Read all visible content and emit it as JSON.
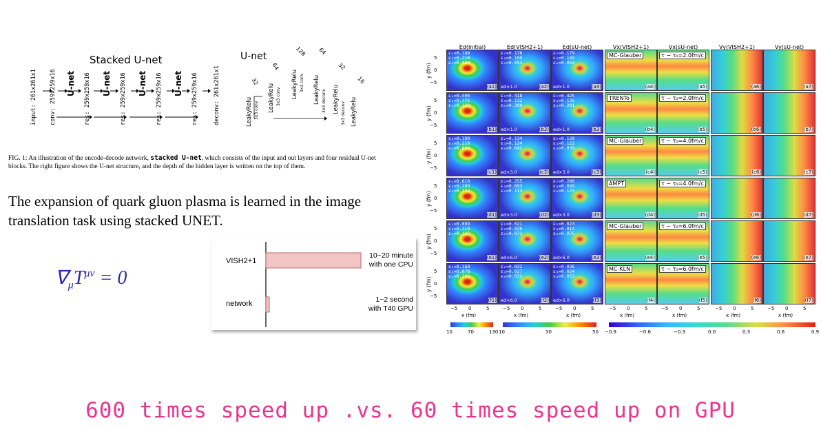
{
  "left": {
    "stacked_title": "Stacked U-net",
    "unet_title": "U-net",
    "stack_labels": [
      "input: 261x261x1",
      "conv: 259x259x16",
      "res: 259x259x16",
      "res: 259x259x16",
      "res: 259x259x16",
      "res: 259x259x16",
      "deconv: 261x261x1"
    ],
    "unet_block": "U-net",
    "unet_depths": [
      "32",
      "64",
      "128",
      "64",
      "32",
      "16"
    ],
    "unet_layers": [
      "LeakyRelu",
      "LeakyRelu",
      "LeakyRelu",
      "LeakyRelu",
      "LeakyRelu",
      "LeakyRelu"
    ],
    "unet_ops": [
      "3x3 conv",
      "3x3 conv",
      "3x3 conv",
      "3x3 deconv",
      "3x3 deconv",
      "3x3 deconv"
    ],
    "caption_prefix": "FIG. 1:   An illustration of the encode-decode network, ",
    "caption_code": "stacked U-net",
    "caption_suffix": ", which consists of the input and out layers and four residual U-net blocks. The right figure shows the U-net structure, and the depth of the hidden layer is written on the top of them.",
    "statement": "The expansion of quark gluon plasma is learned in the image translation task using stacked UNET.",
    "equation": "∇μTμν = 0"
  },
  "bar_chart": {
    "chart_data": {
      "type": "bar",
      "orientation": "horizontal",
      "categories": [
        "VISH2+1",
        "network"
      ],
      "values": [
        1.0,
        0.02
      ],
      "annotations": [
        "10~20 minute\nwith one CPU",
        "1~2 second\nwith T40 GPU"
      ],
      "colors": {
        "bar_fill": "#f2c4c4",
        "bar_stroke": "#b86a6a"
      }
    }
  },
  "grid": {
    "columns": [
      "Ed(Initial)",
      "Ed(VISH2+1)",
      "Ed(sU-net)",
      "Vx(VISH2+1)",
      "Vx(sU-net)",
      "Vy(VISH2+1)",
      "Vy(sU-net)"
    ],
    "ylabel": "y (fm)",
    "xlabel": "x (fm)",
    "yticks": [
      "5",
      "0",
      "−5"
    ],
    "xticks": [
      "−5",
      "0",
      "5"
    ],
    "rows": [
      {
        "eps": [
          [
            "ε₂=0.188",
            "ε₃=0.210",
            "ε₄=0.080"
          ],
          [
            "ε₂=0.178",
            "ε₃=0.150",
            "ε₄=0.053"
          ],
          [
            "ε₂=0.179",
            "ε₃=0.149",
            "ε₄=0.054"
          ]
        ],
        "ed": "",
        "model": "MC-Glauber",
        "tau": "τ − τ₀=2.0fm/c",
        "labels": [
          "(a1)",
          "(a2)",
          "(a3)",
          "(a4)",
          "(a5)",
          "(a6)",
          "(a7)"
        ],
        "edlab": "ed×1.0"
      },
      {
        "eps": [
          [
            "ε₂=0.496",
            "ε₃=0.175",
            "ε₄=0.123"
          ],
          [
            "ε₂=0.418",
            "ε₃=0.132",
            "ε₄=0.200"
          ],
          [
            "ε₂=0.425",
            "ε₃=0.135",
            "ε₄=0.201"
          ]
        ],
        "model": "TRENTo",
        "tau": "τ − τ₀=2.0fm/c",
        "labels": [
          "(b1)",
          "(b2)",
          "(b3)",
          "(b4)",
          "(b5)",
          "(b6)",
          "(b7)"
        ],
        "edlab": "ed×1.0"
      },
      {
        "eps": [
          [
            "ε₂=0.188",
            "ε₃=0.210",
            "ε₄=0.080"
          ],
          [
            "ε₂=0.134",
            "ε₃=0.124",
            "ε₄=0.042"
          ],
          [
            "ε₂=0.130",
            "ε₃=0.122",
            "ε₄=0.039"
          ]
        ],
        "model": "MC-Glauber",
        "tau": "τ − τ₀=4.0fm/c",
        "labels": [
          "(c1)",
          "(c2)",
          "(c3)",
          "(c4)",
          "(c5)",
          "(c6)",
          "(c7)"
        ],
        "edlab": "ed×3.0"
      },
      {
        "eps": [
          [
            "ε₂=0.610",
            "ε₃=0.193",
            "ε₄=0.222"
          ],
          [
            "ε₂=0.255",
            "ε₃=0.093",
            "ε₄=0.113"
          ],
          [
            "ε₂=0.280",
            "ε₃=0.099",
            "ε₄=0.123"
          ]
        ],
        "model": "AMPT",
        "tau": "τ − τ₀=4.0fm/c",
        "labels": [
          "(d1)",
          "(d2)",
          "(d3)",
          "(d4)",
          "(d5)",
          "(d6)",
          "(d7)"
        ],
        "edlab": "ed×3.0"
      },
      {
        "eps": [
          [
            "ε₂=0.099",
            "ε₃=0.119",
            "ε₄=0.137"
          ],
          [
            "ε₂=0.021",
            "ε₃=0.026",
            "ε₄=0.072"
          ],
          [
            "ε₂=0.023",
            "ε₃=0.014",
            "ε₄=0.075"
          ]
        ],
        "model": "MC-Glauber",
        "tau": "τ − τ₀=6.0fm/c",
        "labels": [
          "(e1)",
          "(e2)",
          "(e3)",
          "(e4)",
          "(e5)",
          "(e6)",
          "(e7)"
        ],
        "edlab": "ed×6.0"
      },
      {
        "eps": [
          [
            "ε₂=0.168",
            "ε₃=0.078",
            "ε₄=0.103"
          ],
          [
            "ε₂=0.032",
            "ε₃=0.027",
            "ε₄=0.032"
          ],
          [
            "ε₂=0.036",
            "ε₃=0.024",
            "ε₄=0.053"
          ]
        ],
        "model": "MC-KLN",
        "tau": "τ − τ₀=6.0fm/c",
        "labels": [
          "(f1)",
          "(f2)",
          "(f3)",
          "(f4)",
          "(f5)",
          "(f6)",
          "(f7)"
        ],
        "edlab": "ed×6.0"
      }
    ],
    "colorbars": [
      {
        "ticks": [
          "10",
          "70",
          "130"
        ]
      },
      {
        "ticks": [
          "10",
          "30",
          "50"
        ]
      },
      {
        "ticks": [
          "−0.9",
          "−0.6",
          "−0.3",
          "0.0",
          "0.3",
          "0.6",
          "0.9"
        ]
      }
    ]
  },
  "banner": "600 times speed up .vs. 60 times speed up on GPU",
  "colors": {
    "banner": "#e8368f",
    "equation": "#2b2bb0"
  }
}
